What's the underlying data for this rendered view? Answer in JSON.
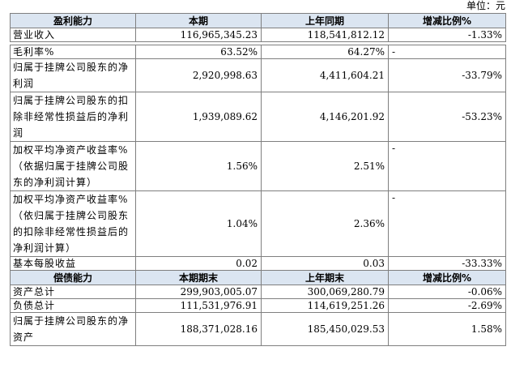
{
  "unit_label": "单位：元",
  "profit_section": {
    "headers": [
      "盈利能力",
      "本期",
      "上年同期",
      "增减比例%"
    ],
    "rows": [
      {
        "label": "营业收入",
        "current": "116,965,345.23",
        "prior": "118,541,812.12",
        "change": "-1.33%"
      },
      {
        "label": "毛利率%",
        "current": "63.52%",
        "prior": "64.27%",
        "change": "-"
      },
      {
        "label": "归属于挂牌公司股东的净利润",
        "current": "2,920,998.63",
        "prior": "4,411,604.21",
        "change": "-33.79%"
      },
      {
        "label": "归属于挂牌公司股东的扣除非经常性损益后的净利润",
        "current": "1,939,089.62",
        "prior": "4,146,201.92",
        "change": "-53.23%"
      },
      {
        "label": "加权平均净资产收益率%（依据归属于挂牌公司股东的净利润计算）",
        "current": "1.56%",
        "prior": "2.51%",
        "change": "-"
      },
      {
        "label": "加权平均净资产收益率%（依归属于挂牌公司股东的扣除非经常性损益后的净利润计算）",
        "current": "1.04%",
        "prior": "2.36%",
        "change": "-"
      },
      {
        "label": "基本每股收益",
        "current": "0.02",
        "prior": "0.03",
        "change": "-33.33%"
      }
    ]
  },
  "solvency_section": {
    "headers": [
      "偿债能力",
      "本期期末",
      "上年期末",
      "增减比例%"
    ],
    "rows": [
      {
        "label": "资产总计",
        "current": "299,903,005.07",
        "prior": "300,069,280.79",
        "change": "-0.06%"
      },
      {
        "label": "负债总计",
        "current": "111,531,976.91",
        "prior": "114,619,251.26",
        "change": "-2.69%"
      },
      {
        "label": "归属于挂牌公司股东的净资产",
        "current": "188,371,028.16",
        "prior": "185,450,029.53",
        "change": "1.58%"
      }
    ]
  }
}
